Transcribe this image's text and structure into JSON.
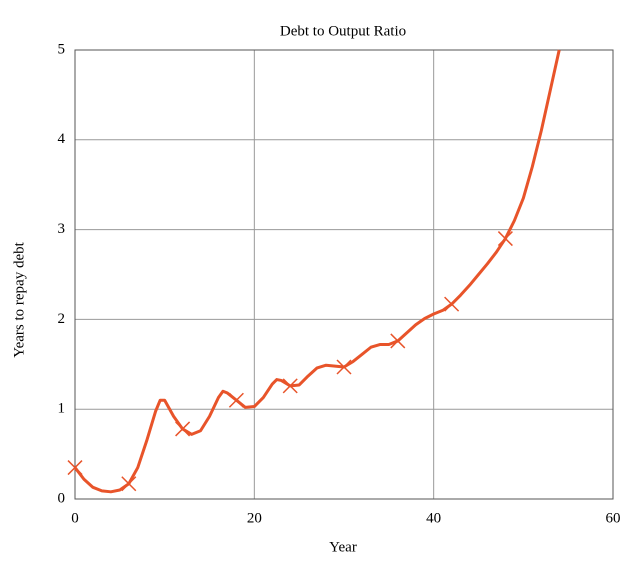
{
  "chart_data": {
    "type": "line",
    "title": "Debt to Output Ratio",
    "xlabel": "Year",
    "ylabel": "Years to repay debt",
    "x": [
      0,
      1,
      2,
      3,
      4,
      5,
      6,
      7,
      8,
      9,
      9.5,
      10,
      11,
      12,
      13,
      14,
      15,
      16,
      16.5,
      17,
      18,
      19,
      20,
      21,
      22,
      22.5,
      23,
      24,
      25,
      26,
      27,
      28,
      29,
      30,
      31,
      32,
      33,
      34,
      35,
      36,
      37,
      38,
      39,
      40,
      41,
      42,
      43,
      44,
      45,
      46,
      47,
      48,
      49,
      50,
      51,
      52,
      53,
      54
    ],
    "series": [
      {
        "color": "#e8542a",
        "values": [
          0.35,
          0.22,
          0.13,
          0.09,
          0.08,
          0.1,
          0.17,
          0.35,
          0.65,
          0.98,
          1.1,
          1.1,
          0.92,
          0.78,
          0.72,
          0.76,
          0.92,
          1.13,
          1.2,
          1.18,
          1.1,
          1.02,
          1.03,
          1.13,
          1.28,
          1.33,
          1.32,
          1.26,
          1.27,
          1.37,
          1.46,
          1.49,
          1.48,
          1.47,
          1.53,
          1.61,
          1.69,
          1.72,
          1.72,
          1.76,
          1.85,
          1.94,
          2.01,
          2.06,
          2.1,
          2.17,
          2.27,
          2.38,
          2.5,
          2.62,
          2.75,
          2.9,
          3.1,
          3.35,
          3.7,
          4.1,
          4.55,
          5.0
        ]
      }
    ],
    "markers": {
      "x": [
        0,
        6,
        12,
        18,
        24,
        30,
        36,
        42,
        48
      ],
      "values": [
        0.35,
        0.17,
        0.78,
        1.1,
        1.26,
        1.47,
        1.76,
        2.17,
        2.9
      ]
    },
    "xlim": [
      0,
      60
    ],
    "xticks": [
      0,
      20,
      40,
      60
    ],
    "ylim": [
      0,
      5
    ],
    "yticks": [
      0,
      1,
      2,
      3,
      4,
      5
    ],
    "grid": true
  }
}
